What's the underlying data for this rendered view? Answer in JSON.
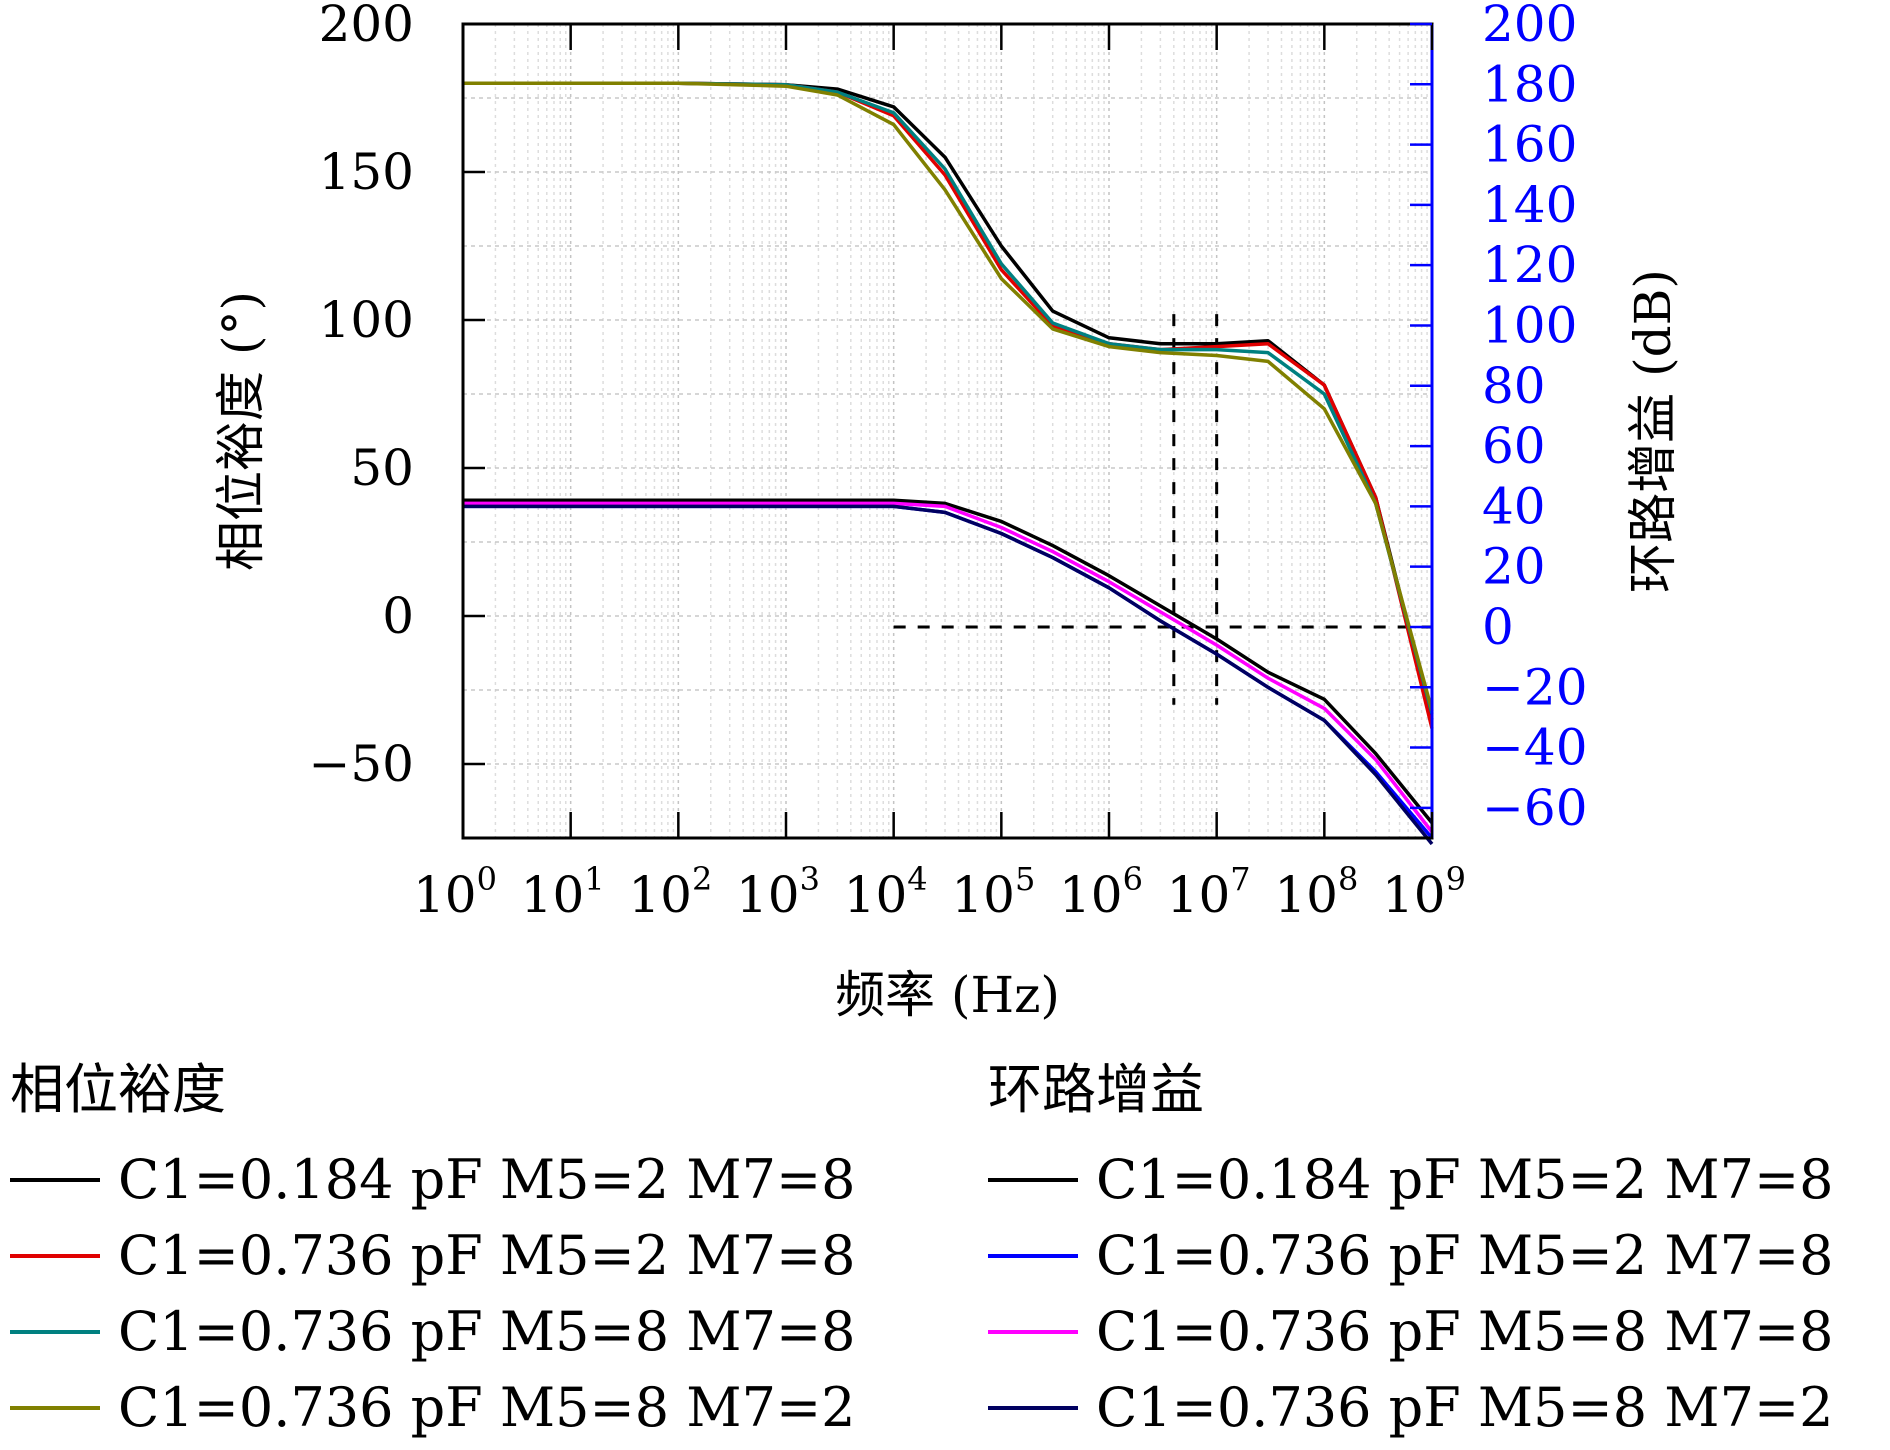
{
  "chart_data": {
    "type": "line",
    "xlabel": "频率 (Hz)",
    "xscale": "log",
    "xlim": [
      1,
      1000000000
    ],
    "x_ticks": [
      {
        "base": "10",
        "exp": "0"
      },
      {
        "base": "10",
        "exp": "1"
      },
      {
        "base": "10",
        "exp": "2"
      },
      {
        "base": "10",
        "exp": "3"
      },
      {
        "base": "10",
        "exp": "4"
      },
      {
        "base": "10",
        "exp": "5"
      },
      {
        "base": "10",
        "exp": "6"
      },
      {
        "base": "10",
        "exp": "7"
      },
      {
        "base": "10",
        "exp": "8"
      },
      {
        "base": "10",
        "exp": "9"
      }
    ],
    "ylabel_left": "相位裕度 (°)",
    "ylim_left": [
      -75,
      200
    ],
    "y_ticks_left": [
      {
        "v": 200,
        "label": "200"
      },
      {
        "v": 150,
        "label": "150"
      },
      {
        "v": 100,
        "label": "100"
      },
      {
        "v": 50,
        "label": "50"
      },
      {
        "v": 0,
        "label": "0"
      },
      {
        "v": -50,
        "label": "−50"
      }
    ],
    "ylabel_right": "环路增益 (dB)",
    "ylim_right": [
      -70,
      200
    ],
    "y_ticks_right": [
      {
        "v": 200,
        "label": "200"
      },
      {
        "v": 180,
        "label": "180"
      },
      {
        "v": 160,
        "label": "160"
      },
      {
        "v": 140,
        "label": "140"
      },
      {
        "v": 120,
        "label": "120"
      },
      {
        "v": 100,
        "label": "100"
      },
      {
        "v": 80,
        "label": "80"
      },
      {
        "v": 60,
        "label": "60"
      },
      {
        "v": 40,
        "label": "40"
      },
      {
        "v": 20,
        "label": "20"
      },
      {
        "v": 0,
        "label": "0"
      },
      {
        "v": -20,
        "label": "−20"
      },
      {
        "v": -40,
        "label": "−40"
      },
      {
        "v": -60,
        "label": "−60"
      }
    ],
    "grid": true,
    "right_axis_color": "#0000ff",
    "x": [
      1,
      10,
      100,
      1000,
      3000,
      10000,
      30000,
      100000,
      300000,
      1000000,
      3000000,
      10000000,
      30000000,
      100000000,
      300000000,
      1000000000
    ],
    "phase_series": [
      {
        "name": "C1=0.184 pF M5=2 M7=8",
        "color": "#000000",
        "values": [
          180,
          180,
          180,
          179.5,
          178,
          172,
          155,
          125,
          103,
          94,
          92,
          92,
          93,
          78,
          40,
          -35
        ]
      },
      {
        "name": "C1=0.736 pF M5=2 M7=8",
        "color": "#e00000",
        "values": [
          180,
          180,
          180,
          179.5,
          177,
          169,
          149,
          117,
          98,
          92,
          90,
          91,
          92,
          78,
          40,
          -38
        ]
      },
      {
        "name": "C1=0.736 pF M5=8 M7=8",
        "color": "#008080",
        "values": [
          180,
          180,
          180,
          179.5,
          177,
          170,
          151,
          119,
          99,
          92,
          90,
          90,
          89,
          75,
          38,
          -33
        ]
      },
      {
        "name": "C1=0.736 pF M5=8 M7=2",
        "color": "#808000",
        "values": [
          180,
          180,
          180,
          179,
          176,
          166,
          144,
          114,
          97,
          91,
          89,
          88,
          86,
          70,
          38,
          -32
        ]
      }
    ],
    "gain_series": [
      {
        "name": "C1=0.184 pF M5=2 M7=8",
        "color": "#000000",
        "values": [
          42,
          42,
          42,
          42,
          42,
          42,
          41,
          35,
          27,
          17,
          7,
          -4,
          -15,
          -24,
          -42,
          -65
        ]
      },
      {
        "name": "C1=0.736 pF M5=2 M7=8",
        "color": "#0000ff",
        "values": [
          40,
          40,
          40,
          40,
          40,
          40,
          38,
          31,
          23,
          13,
          2,
          -9,
          -20,
          -31,
          -48,
          -70
        ]
      },
      {
        "name": "C1=0.736 pF M5=8 M7=8",
        "color": "#ff00ff",
        "values": [
          41,
          41,
          41,
          41,
          41,
          41,
          40,
          33,
          25,
          15,
          5,
          -6,
          -17,
          -27,
          -44,
          -68
        ]
      },
      {
        "name": "C1=0.736 pF M5=8 M7=2",
        "color": "#000060",
        "values": [
          40,
          40,
          40,
          40,
          40,
          40,
          38,
          31,
          23,
          13,
          2,
          -9,
          -20,
          -31,
          -49,
          -72
        ]
      }
    ],
    "annotations": [
      {
        "type": "vline",
        "x": 4000000,
        "y_range_left": [
          -30,
          102
        ]
      },
      {
        "type": "vline",
        "x": 10000000,
        "y_range_left": [
          -30,
          102
        ]
      },
      {
        "type": "hline",
        "y_right": 0,
        "x_range": [
          10000,
          1000000000
        ]
      }
    ],
    "legend": {
      "placement": "bottom",
      "phase_title": "相位裕度",
      "gain_title": "环路增益"
    }
  }
}
